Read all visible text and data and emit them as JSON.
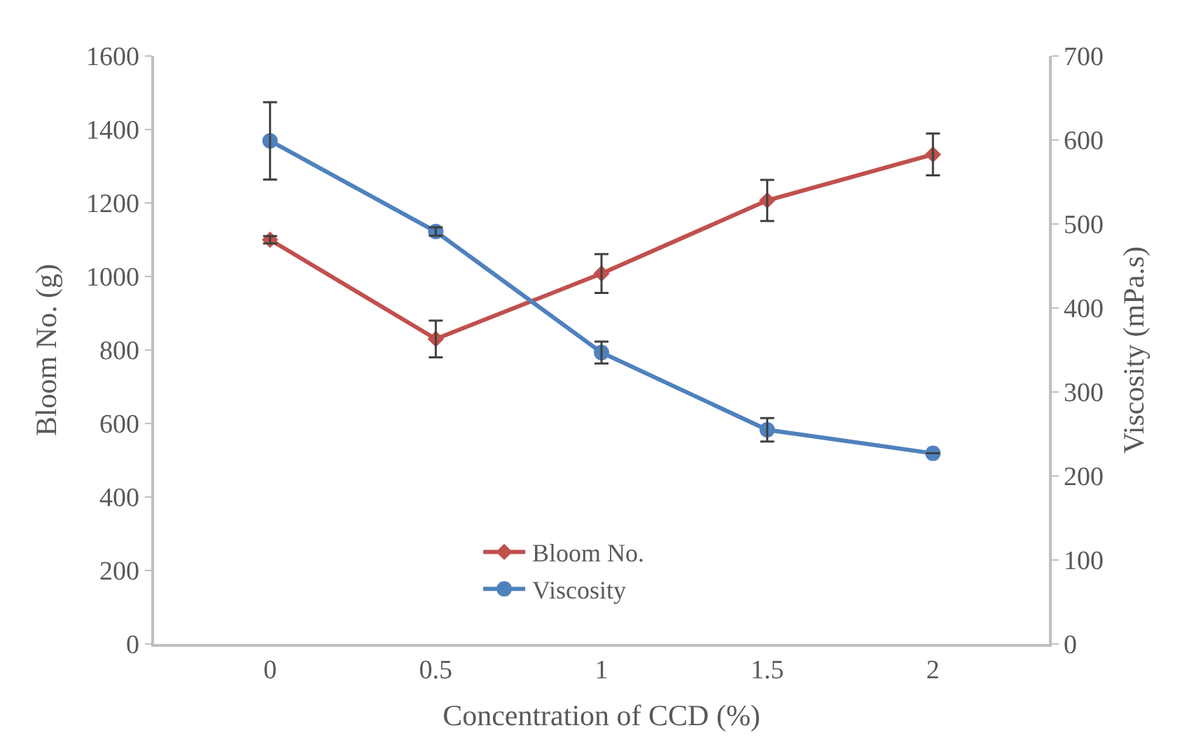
{
  "chart_data": {
    "type": "line",
    "categories": [
      "0",
      "0.5",
      "1",
      "1.5",
      "2"
    ],
    "xlabel": "Concentration of CCD (%)",
    "ylabel": "Bloom No. (g)",
    "y2label": "Viscosity (mPa.s)",
    "series": [
      {
        "name": "Bloom No.",
        "color": "#c0504d",
        "marker": "diamond",
        "values": [
          1100,
          830,
          1008,
          1207,
          1332
        ],
        "errors": [
          10,
          50,
          53,
          56,
          57
        ]
      },
      {
        "name": "Viscosity",
        "color": "#4f81bd",
        "marker": "circle",
        "axis": "y2",
        "values": [
          599,
          491,
          347,
          255,
          227
        ],
        "errors": [
          46,
          5,
          13,
          14,
          null
        ]
      }
    ],
    "ylim": [
      0,
      1600
    ],
    "yticks": [
      0,
      200,
      400,
      600,
      800,
      1000,
      1200,
      1400,
      1600
    ],
    "y2lim": [
      0,
      700
    ],
    "y2ticks": [
      0,
      100,
      200,
      300,
      400,
      500,
      600,
      700
    ],
    "legend": "bottom",
    "line_style": "solid"
  }
}
